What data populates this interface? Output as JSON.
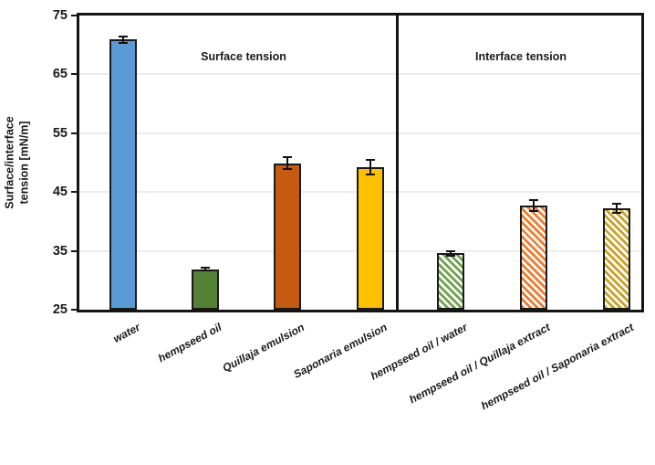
{
  "chart_data": {
    "type": "bar",
    "title": "",
    "ylabel": "Surface/interface tension [mN/m]",
    "ylim": [
      25,
      75
    ],
    "yticks": [
      "75",
      "65",
      "55",
      "45",
      "35",
      "25"
    ],
    "grid": "horizontal-light",
    "legend": "none",
    "sections": [
      {
        "label": "Surface tension"
      },
      {
        "label": "Interface tension"
      }
    ],
    "bars": [
      {
        "category": "water",
        "value": 70.9,
        "error": 0.5,
        "color": "#5B9BD5",
        "pattern": "solid",
        "section": 0
      },
      {
        "category": "hempseed oil",
        "value": 31.9,
        "error": 0.3,
        "color": "#548235",
        "pattern": "solid",
        "section": 0
      },
      {
        "category": "Quillaja emulsion",
        "value": 49.9,
        "error": 1.0,
        "color": "#C55A11",
        "pattern": "solid",
        "section": 0
      },
      {
        "category": "Saponaria emulsion",
        "value": 49.2,
        "error": 1.2,
        "color": "#FFC000",
        "pattern": "solid",
        "section": 0
      },
      {
        "category": "hempseed oil / water",
        "value": 34.6,
        "error": 0.4,
        "color": "#6FA44D",
        "pattern": "diagonal-hatch",
        "section": 1
      },
      {
        "category": "hempseed oil / Quillaja extract",
        "value": 42.7,
        "error": 1.0,
        "color": "#ED7D31",
        "pattern": "diagonal-hatch",
        "section": 1
      },
      {
        "category": "hempseed oil / Saponaria extract",
        "value": 42.2,
        "error": 0.8,
        "color": "#C9A227",
        "pattern": "diagonal-hatch",
        "section": 1
      }
    ],
    "colors": {
      "axis": "#141414",
      "gridline": "#ececec",
      "error_bar": "#111111"
    }
  }
}
